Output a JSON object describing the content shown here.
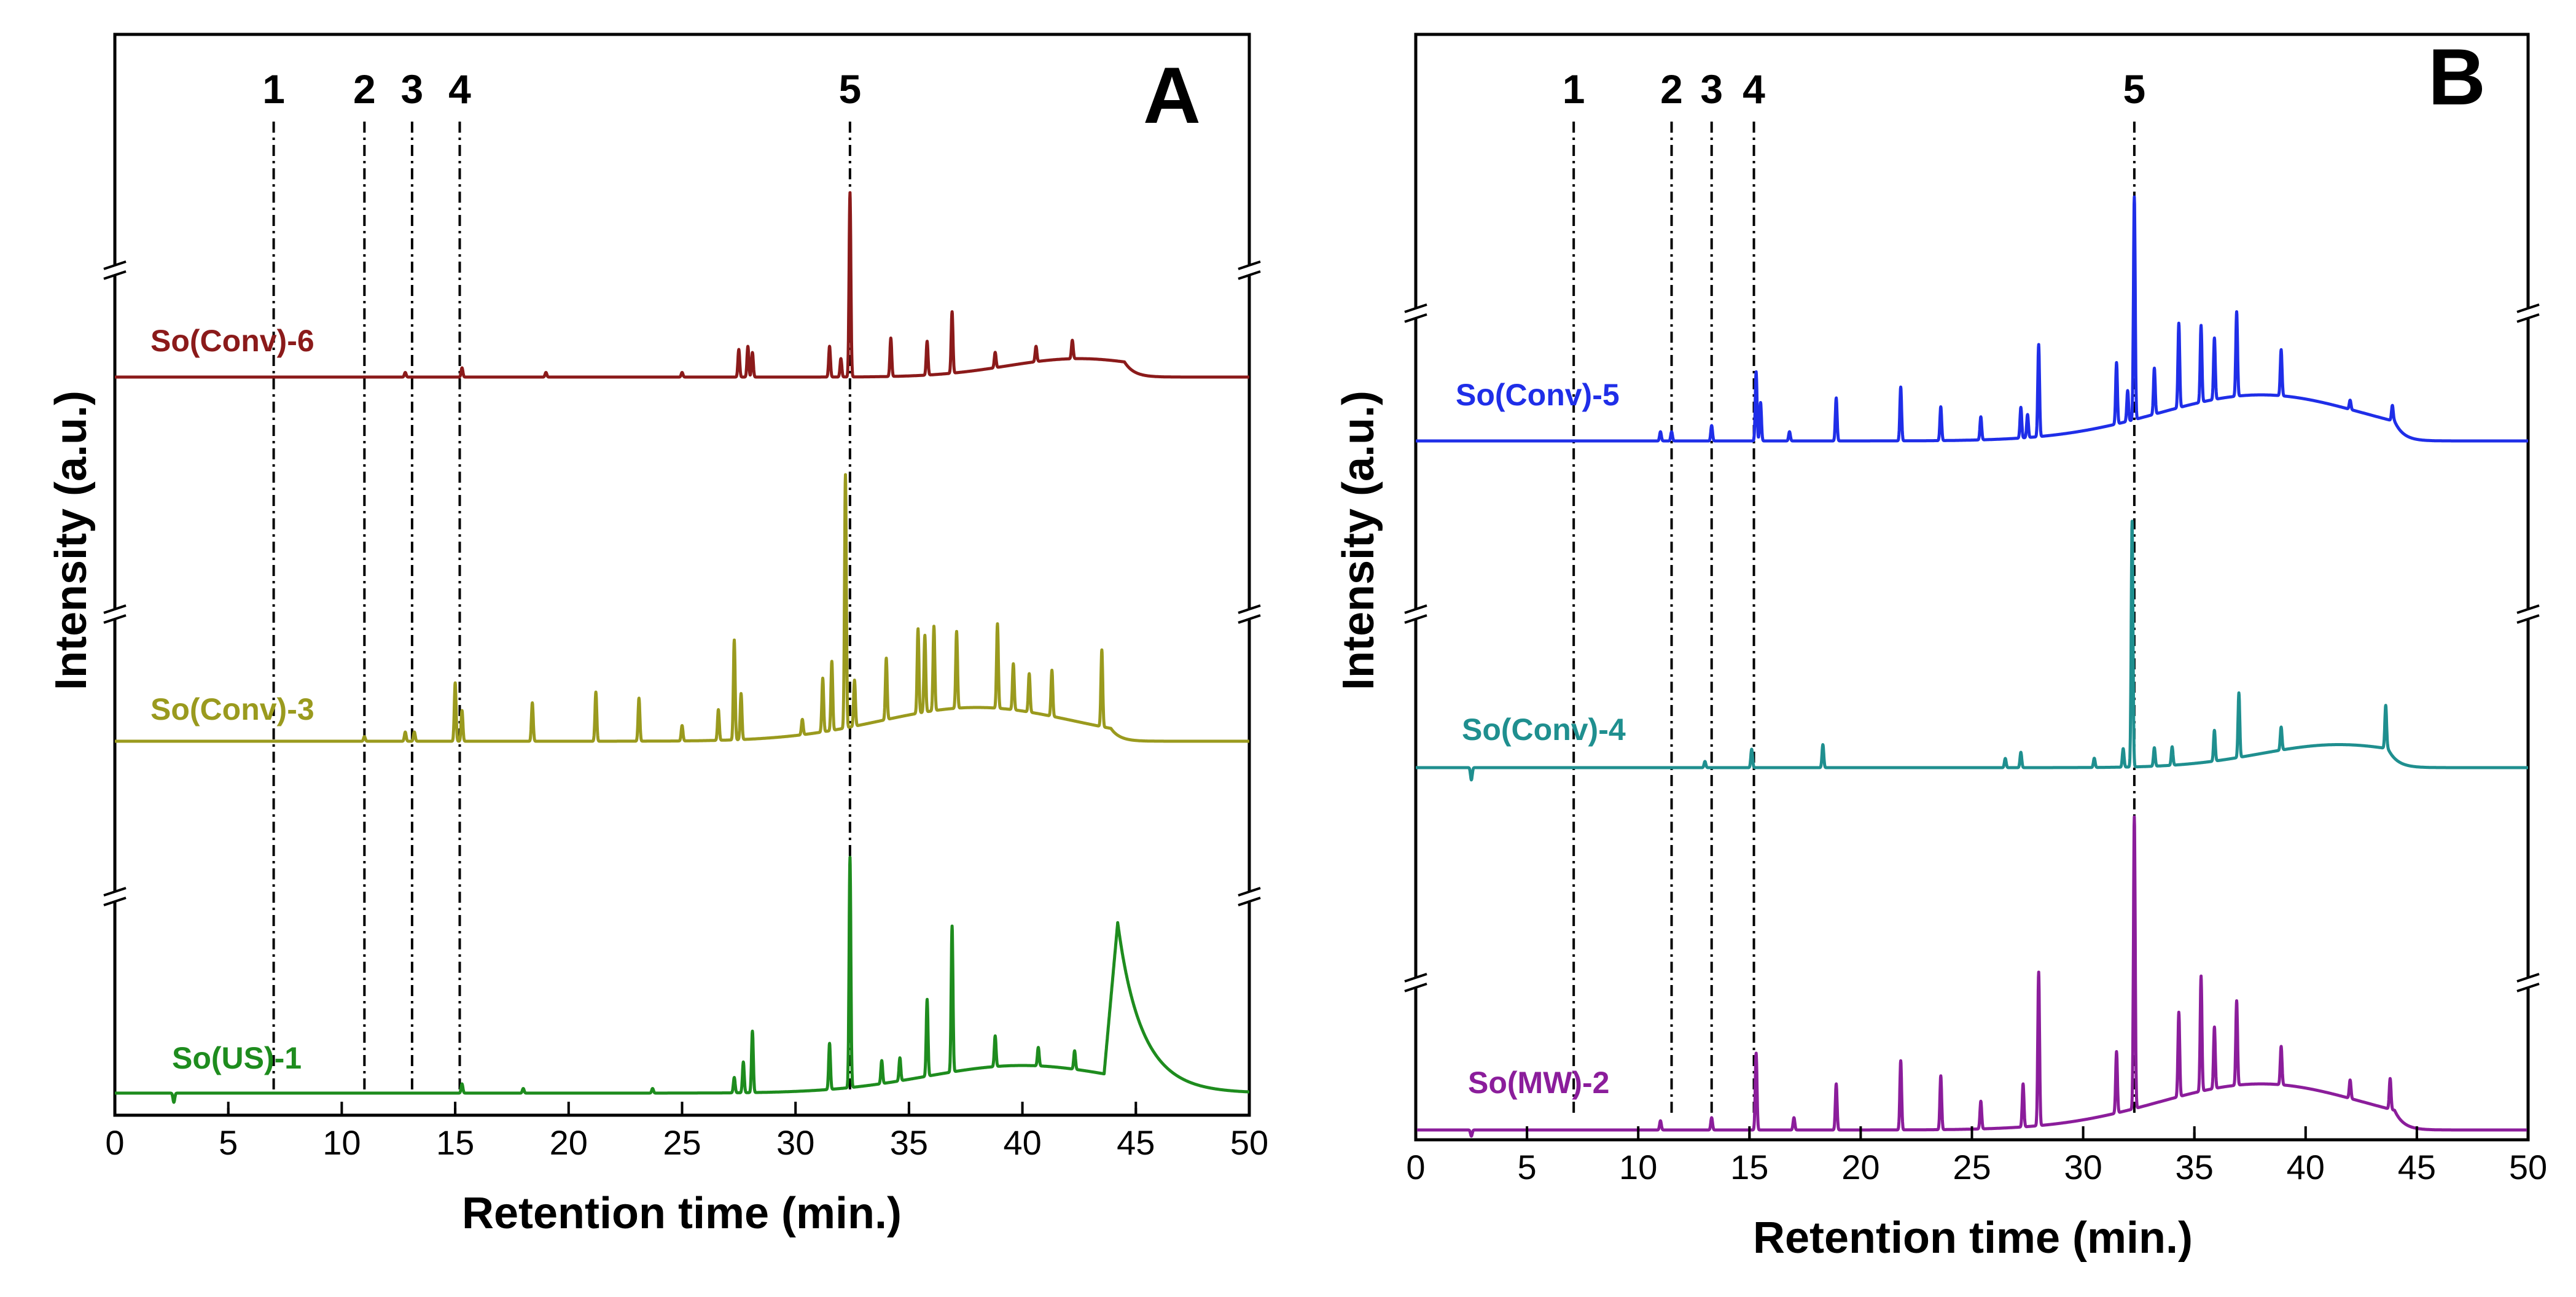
{
  "chart_data": [
    {
      "type": "line",
      "panel": "A",
      "xlabel": "Retention time (min.)",
      "ylabel": "Intensity (a.u.)",
      "xlim": [
        0,
        50
      ],
      "xticks": [
        0,
        5,
        10,
        15,
        20,
        25,
        30,
        35,
        40,
        45,
        50
      ],
      "y_axis_breaks": true,
      "grid": false,
      "legend": "inline labels",
      "marker_lines": [
        {
          "label": "1",
          "x": 7.0
        },
        {
          "label": "2",
          "x": 11.0
        },
        {
          "label": "3",
          "x": 13.1
        },
        {
          "label": "4",
          "x": 15.2
        },
        {
          "label": "5",
          "x": 32.4
        }
      ],
      "series": [
        {
          "name": "So(Conv)-6",
          "color": "#8b1a1a",
          "baseline_level": 0.0,
          "hump": {
            "center": 42.5,
            "width": 4.5,
            "height": 0.12,
            "end": 44.5
          },
          "peaks": [
            {
              "x": 12.8,
              "h": 0.03
            },
            {
              "x": 15.3,
              "h": 0.06
            },
            {
              "x": 19.0,
              "h": 0.03
            },
            {
              "x": 25.0,
              "h": 0.03
            },
            {
              "x": 27.5,
              "h": 0.18
            },
            {
              "x": 27.9,
              "h": 0.2
            },
            {
              "x": 28.1,
              "h": 0.16
            },
            {
              "x": 31.5,
              "h": 0.2
            },
            {
              "x": 32.0,
              "h": 0.12
            },
            {
              "x": 32.4,
              "h": 1.2
            },
            {
              "x": 34.2,
              "h": 0.25
            },
            {
              "x": 35.8,
              "h": 0.22
            },
            {
              "x": 36.9,
              "h": 0.4
            },
            {
              "x": 38.8,
              "h": 0.1
            },
            {
              "x": 40.6,
              "h": 0.1
            },
            {
              "x": 42.2,
              "h": 0.12
            }
          ]
        },
        {
          "name": "So(Conv)-3",
          "color": "#9a9a1e",
          "baseline_level": 0.0,
          "hump": {
            "center": 38.0,
            "width": 6.0,
            "height": 0.22,
            "end": 43.9
          },
          "peaks": [
            {
              "x": 11.0,
              "h": 0.03
            },
            {
              "x": 12.8,
              "h": 0.06
            },
            {
              "x": 13.2,
              "h": 0.06
            },
            {
              "x": 15.0,
              "h": 0.38
            },
            {
              "x": 15.3,
              "h": 0.2
            },
            {
              "x": 18.4,
              "h": 0.25
            },
            {
              "x": 21.2,
              "h": 0.32
            },
            {
              "x": 23.1,
              "h": 0.28
            },
            {
              "x": 25.0,
              "h": 0.1
            },
            {
              "x": 26.6,
              "h": 0.2
            },
            {
              "x": 27.3,
              "h": 0.65
            },
            {
              "x": 27.6,
              "h": 0.3
            },
            {
              "x": 30.3,
              "h": 0.1
            },
            {
              "x": 31.2,
              "h": 0.35
            },
            {
              "x": 31.6,
              "h": 0.45
            },
            {
              "x": 32.2,
              "h": 1.65
            },
            {
              "x": 32.6,
              "h": 0.3
            },
            {
              "x": 34.0,
              "h": 0.4
            },
            {
              "x": 35.4,
              "h": 0.55
            },
            {
              "x": 35.7,
              "h": 0.5
            },
            {
              "x": 36.1,
              "h": 0.55
            },
            {
              "x": 37.1,
              "h": 0.5
            },
            {
              "x": 38.9,
              "h": 0.55
            },
            {
              "x": 39.6,
              "h": 0.3
            },
            {
              "x": 40.3,
              "h": 0.25
            },
            {
              "x": 41.3,
              "h": 0.3
            },
            {
              "x": 43.5,
              "h": 0.5
            }
          ]
        },
        {
          "name": "So(US)-1",
          "color": "#1e8c1e",
          "baseline_level": 0.0,
          "hump": {
            "center": 40.0,
            "width": 6.0,
            "height": 0.18,
            "end": 44.2
          },
          "tail": {
            "x": 44.2,
            "height": 1.0,
            "decay": 1.2
          },
          "peaks": [
            {
              "x": 2.6,
              "h": -0.06
            },
            {
              "x": 15.3,
              "h": 0.06
            },
            {
              "x": 18.0,
              "h": 0.03
            },
            {
              "x": 23.7,
              "h": 0.03
            },
            {
              "x": 27.3,
              "h": 0.1
            },
            {
              "x": 27.7,
              "h": 0.2
            },
            {
              "x": 28.1,
              "h": 0.4
            },
            {
              "x": 31.5,
              "h": 0.3
            },
            {
              "x": 32.4,
              "h": 1.5
            },
            {
              "x": 33.8,
              "h": 0.15
            },
            {
              "x": 34.6,
              "h": 0.15
            },
            {
              "x": 35.8,
              "h": 0.5
            },
            {
              "x": 36.9,
              "h": 0.95
            },
            {
              "x": 38.8,
              "h": 0.2
            },
            {
              "x": 40.7,
              "h": 0.12
            },
            {
              "x": 42.3,
              "h": 0.12
            }
          ]
        }
      ]
    },
    {
      "type": "line",
      "panel": "B",
      "xlabel": "Retention time (min.)",
      "ylabel": "Intensity (a.u.)",
      "xlim": [
        0,
        50
      ],
      "xticks": [
        0,
        5,
        10,
        15,
        20,
        25,
        30,
        35,
        40,
        45,
        50
      ],
      "y_axis_breaks": true,
      "grid": false,
      "legend": "inline labels",
      "marker_lines": [
        {
          "label": "1",
          "x": 7.1
        },
        {
          "label": "2",
          "x": 11.5
        },
        {
          "label": "3",
          "x": 13.3
        },
        {
          "label": "4",
          "x": 15.2
        },
        {
          "label": "5",
          "x": 32.3
        }
      ],
      "series": [
        {
          "name": "So(Conv)-5",
          "color": "#1f2ee8",
          "baseline_level": 0.0,
          "hump": {
            "center": 38.0,
            "width": 6.5,
            "height": 0.3,
            "end": 44.0
          },
          "peaks": [
            {
              "x": 11.0,
              "h": 0.06
            },
            {
              "x": 11.5,
              "h": 0.06
            },
            {
              "x": 13.3,
              "h": 0.1
            },
            {
              "x": 15.3,
              "h": 0.45
            },
            {
              "x": 15.5,
              "h": 0.25
            },
            {
              "x": 16.8,
              "h": 0.06
            },
            {
              "x": 18.9,
              "h": 0.28
            },
            {
              "x": 21.8,
              "h": 0.35
            },
            {
              "x": 23.6,
              "h": 0.22
            },
            {
              "x": 25.4,
              "h": 0.15
            },
            {
              "x": 27.2,
              "h": 0.2
            },
            {
              "x": 27.5,
              "h": 0.15
            },
            {
              "x": 28.0,
              "h": 0.6
            },
            {
              "x": 31.5,
              "h": 0.4
            },
            {
              "x": 32.0,
              "h": 0.2
            },
            {
              "x": 32.3,
              "h": 1.45
            },
            {
              "x": 33.2,
              "h": 0.3
            },
            {
              "x": 34.3,
              "h": 0.55
            },
            {
              "x": 35.3,
              "h": 0.5
            },
            {
              "x": 35.9,
              "h": 0.4
            },
            {
              "x": 36.9,
              "h": 0.55
            },
            {
              "x": 38.9,
              "h": 0.3
            },
            {
              "x": 42.0,
              "h": 0.06
            },
            {
              "x": 43.9,
              "h": 0.1
            }
          ]
        },
        {
          "name": "So(Conv)-4",
          "color": "#1f8f8f",
          "baseline_level": 0.0,
          "hump": {
            "center": 41.5,
            "width": 5.0,
            "height": 0.15,
            "end": 43.7
          },
          "peaks": [
            {
              "x": 2.5,
              "h": -0.08
            },
            {
              "x": 13.0,
              "h": 0.04
            },
            {
              "x": 15.1,
              "h": 0.12
            },
            {
              "x": 18.3,
              "h": 0.15
            },
            {
              "x": 26.5,
              "h": 0.06
            },
            {
              "x": 27.2,
              "h": 0.1
            },
            {
              "x": 30.5,
              "h": 0.06
            },
            {
              "x": 31.8,
              "h": 0.12
            },
            {
              "x": 32.2,
              "h": 1.6
            },
            {
              "x": 33.2,
              "h": 0.12
            },
            {
              "x": 34.0,
              "h": 0.12
            },
            {
              "x": 35.9,
              "h": 0.2
            },
            {
              "x": 37.0,
              "h": 0.42
            },
            {
              "x": 38.9,
              "h": 0.15
            },
            {
              "x": 43.6,
              "h": 0.28
            }
          ]
        },
        {
          "name": "So(MW)-2",
          "color": "#8b1d9b",
          "baseline_level": 0.0,
          "hump": {
            "center": 38.0,
            "width": 6.5,
            "height": 0.3,
            "end": 44.0
          },
          "peaks": [
            {
              "x": 2.5,
              "h": -0.04
            },
            {
              "x": 11.0,
              "h": 0.06
            },
            {
              "x": 13.3,
              "h": 0.08
            },
            {
              "x": 15.3,
              "h": 0.5
            },
            {
              "x": 17.0,
              "h": 0.08
            },
            {
              "x": 18.9,
              "h": 0.3
            },
            {
              "x": 21.8,
              "h": 0.45
            },
            {
              "x": 23.6,
              "h": 0.35
            },
            {
              "x": 25.4,
              "h": 0.18
            },
            {
              "x": 27.3,
              "h": 0.28
            },
            {
              "x": 28.0,
              "h": 1.0
            },
            {
              "x": 31.5,
              "h": 0.4
            },
            {
              "x": 32.3,
              "h": 1.9
            },
            {
              "x": 34.3,
              "h": 0.55
            },
            {
              "x": 35.3,
              "h": 0.75
            },
            {
              "x": 35.9,
              "h": 0.4
            },
            {
              "x": 36.9,
              "h": 0.55
            },
            {
              "x": 38.9,
              "h": 0.25
            },
            {
              "x": 42.0,
              "h": 0.12
            },
            {
              "x": 43.8,
              "h": 0.2
            }
          ]
        }
      ]
    }
  ]
}
